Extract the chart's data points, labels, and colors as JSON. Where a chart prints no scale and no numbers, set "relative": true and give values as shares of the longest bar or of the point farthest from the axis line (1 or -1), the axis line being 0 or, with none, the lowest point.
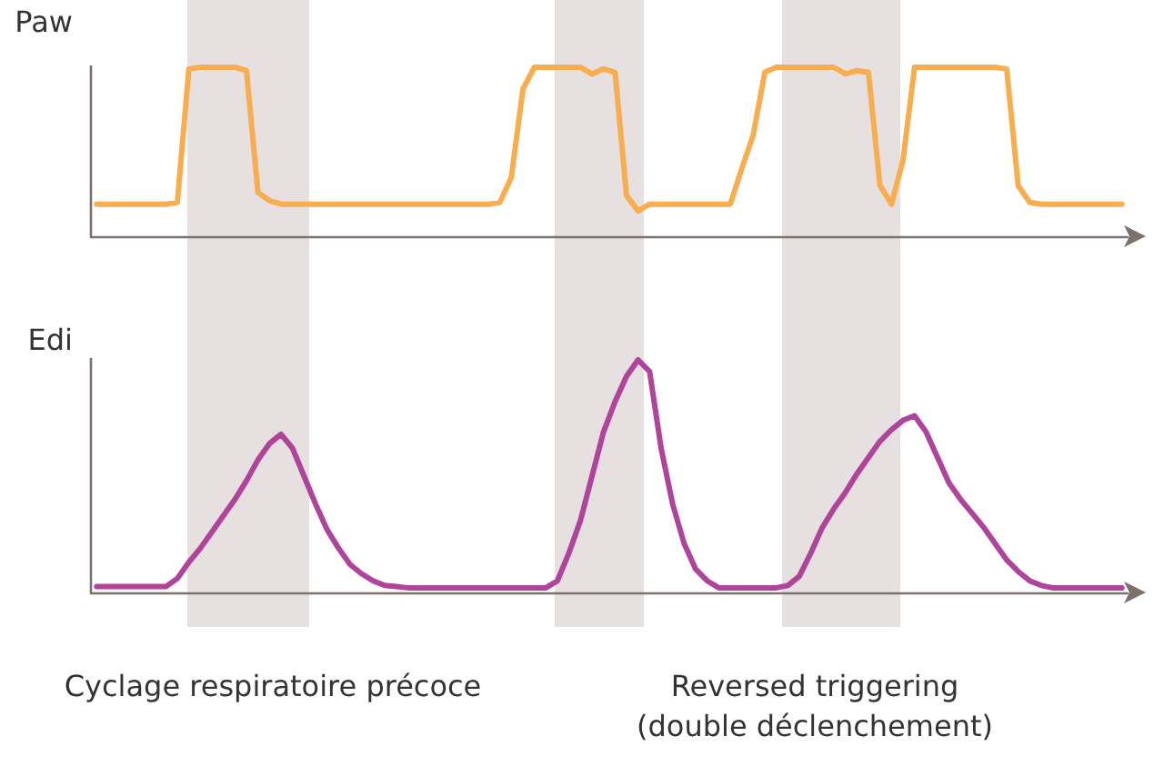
{
  "chart_data": [
    {
      "type": "line",
      "relative": true,
      "ylabel": "Paw",
      "marker": "none",
      "line_style": "solid",
      "categories": [
        null,
        null,
        null,
        null,
        null,
        null,
        null,
        null,
        null,
        null,
        null,
        null,
        null,
        null,
        null,
        null,
        null,
        null,
        null,
        null,
        null,
        null,
        null,
        null,
        null,
        null,
        null,
        null,
        null,
        null,
        null,
        null,
        null,
        null,
        null,
        null,
        null,
        null,
        null,
        null,
        null,
        null,
        null,
        null,
        null,
        null,
        null,
        null,
        null,
        null,
        null,
        null,
        null,
        null,
        null,
        null,
        null,
        null,
        null,
        null,
        null,
        null,
        null,
        null,
        null,
        null,
        null,
        null,
        null,
        null,
        null,
        null,
        null,
        null,
        null,
        null,
        null,
        null,
        null,
        null,
        null,
        null,
        null,
        null,
        null,
        null,
        null,
        null,
        null,
        null
      ],
      "series": [
        {
          "color": "#f8ae4e",
          "values": [
            0.19,
            0.19,
            0.19,
            0.19,
            0.19,
            0.19,
            0.19,
            0.2,
            0.99,
            1,
            1,
            1,
            1,
            0.98,
            0.26,
            0.21,
            0.19,
            0.19,
            0.19,
            0.19,
            0.19,
            0.19,
            0.19,
            0.19,
            0.19,
            0.19,
            0.19,
            0.19,
            0.19,
            0.19,
            0.19,
            0.19,
            0.19,
            0.19,
            0.19,
            0.2,
            0.35,
            0.87,
            1,
            1,
            1,
            1,
            1,
            0.96,
            0.99,
            0.97,
            0.24,
            0.15,
            0.19,
            0.19,
            0.19,
            0.19,
            0.19,
            0.19,
            0.19,
            0.19,
            0.4,
            0.6,
            0.97,
            1,
            1,
            1,
            1,
            1,
            1,
            0.96,
            0.98,
            0.97,
            0.3,
            0.19,
            0.45,
            1,
            1,
            1,
            1,
            1,
            1,
            1,
            1,
            0.99,
            0.3,
            0.2,
            0.19,
            0.19,
            0.19,
            0.19,
            0.19,
            0.19,
            0.19,
            0.19
          ]
        }
      ]
    },
    {
      "type": "line",
      "relative": true,
      "ylabel": "Edi",
      "marker": "none",
      "line_style": "solid",
      "categories": [
        null,
        null,
        null,
        null,
        null,
        null,
        null,
        null,
        null,
        null,
        null,
        null,
        null,
        null,
        null,
        null,
        null,
        null,
        null,
        null,
        null,
        null,
        null,
        null,
        null,
        null,
        null,
        null,
        null,
        null,
        null,
        null,
        null,
        null,
        null,
        null,
        null,
        null,
        null,
        null,
        null,
        null,
        null,
        null,
        null,
        null,
        null,
        null,
        null,
        null,
        null,
        null,
        null,
        null,
        null,
        null,
        null,
        null,
        null,
        null,
        null,
        null,
        null,
        null,
        null,
        null,
        null,
        null,
        null,
        null,
        null,
        null,
        null,
        null,
        null,
        null,
        null,
        null,
        null,
        null,
        null,
        null,
        null,
        null,
        null,
        null,
        null,
        null,
        null,
        null
      ],
      "annotations": [
        "Cyclage respiratoire précoce",
        "Reversed triggering\n(double déclenchement)"
      ],
      "series": [
        {
          "color": "#b0439a",
          "values": [
            0.025,
            0.025,
            0.025,
            0.025,
            0.025,
            0.025,
            0.025,
            0.06,
            0.13,
            0.19,
            0.26,
            0.33,
            0.4,
            0.48,
            0.57,
            0.64,
            0.68,
            0.62,
            0.5,
            0.38,
            0.27,
            0.19,
            0.12,
            0.08,
            0.05,
            0.03,
            0.025,
            0.02,
            0.02,
            0.02,
            0.02,
            0.02,
            0.02,
            0.02,
            0.02,
            0.02,
            0.02,
            0.02,
            0.02,
            0.02,
            0.05,
            0.17,
            0.31,
            0.5,
            0.69,
            0.82,
            0.93,
            1,
            0.95,
            0.62,
            0.38,
            0.21,
            0.1,
            0.05,
            0.02,
            0.02,
            0.02,
            0.02,
            0.02,
            0.02,
            0.03,
            0.07,
            0.17,
            0.28,
            0.36,
            0.43,
            0.51,
            0.58,
            0.65,
            0.7,
            0.74,
            0.76,
            0.69,
            0.58,
            0.47,
            0.4,
            0.34,
            0.28,
            0.21,
            0.14,
            0.09,
            0.05,
            0.03,
            0.02,
            0.02,
            0.02,
            0.02,
            0.02,
            0.02,
            0.02
          ]
        }
      ]
    }
  ]
}
